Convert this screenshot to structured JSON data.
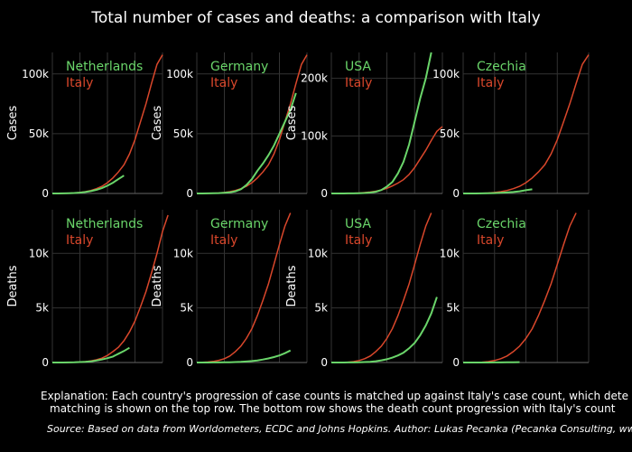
{
  "title": "Total number of cases and deaths: a comparison with Italy",
  "explanation": [
    "Explanation: Each country's progression of case counts is matched up against Italy's case count, which dete",
    "matching is shown on the top row. The bottom row shows the death count progression with Italy's count"
  ],
  "source": "Source: Based on data from Worldometers, ECDC and Johns Hopkins. Author: Lukas Pecanka (Pecanka Consulting, www.pecanka.net)",
  "colors": {
    "italy": "#d9472b",
    "country": "#6ad56a",
    "grid": "#333333",
    "zero": "#666666"
  },
  "chart_data": [
    {
      "type": "line",
      "row": "cases",
      "ylabel": "Cases",
      "yticks": [
        0,
        50000,
        100000
      ],
      "ytick_labels": [
        "0",
        "50k",
        "100k"
      ],
      "ylim": [
        0,
        118000
      ],
      "series": [
        {
          "name": "Netherlands",
          "values": [
            0,
            0,
            100,
            200,
            400,
            700,
            1200,
            2000,
            3000,
            4500,
            6500,
            9000,
            12000,
            15000
          ]
        },
        {
          "name": "Italy",
          "values": [
            0,
            0,
            100,
            200,
            400,
            800,
            1500,
            2500,
            4000,
            6000,
            9000,
            13000,
            18000,
            24000,
            33000,
            45000,
            60000,
            75000,
            92000,
            108000,
            116000
          ]
        }
      ]
    },
    {
      "type": "line",
      "row": "cases",
      "ylabel": "Cases",
      "yticks": [
        0,
        50000,
        100000
      ],
      "ytick_labels": [
        "0",
        "50k",
        "100k"
      ],
      "ylim": [
        0,
        118000
      ],
      "series": [
        {
          "name": "Germany",
          "values": [
            0,
            0,
            100,
            200,
            300,
            500,
            900,
            1800,
            3500,
            7000,
            12000,
            19000,
            25000,
            32000,
            40000,
            50000,
            60000,
            70000,
            84000
          ]
        },
        {
          "name": "Italy",
          "values": [
            0,
            0,
            100,
            200,
            400,
            800,
            1500,
            2500,
            4000,
            6000,
            9000,
            13000,
            18000,
            24000,
            33000,
            45000,
            60000,
            75000,
            92000,
            108000,
            116000
          ]
        }
      ]
    },
    {
      "type": "line",
      "row": "cases",
      "ylabel": "Cases",
      "yticks": [
        0,
        100000,
        200000
      ],
      "ytick_labels": [
        "0",
        "100k",
        "200k"
      ],
      "ylim": [
        0,
        245000
      ],
      "series": [
        {
          "name": "USA",
          "values": [
            0,
            0,
            0,
            100,
            200,
            400,
            800,
            1500,
            3000,
            6000,
            12000,
            20000,
            35000,
            55000,
            85000,
            125000,
            165000,
            200000,
            245000
          ]
        },
        {
          "name": "Italy",
          "values": [
            0,
            0,
            100,
            200,
            400,
            800,
            1500,
            2500,
            4000,
            6000,
            9000,
            13000,
            18000,
            24000,
            33000,
            45000,
            60000,
            75000,
            92000,
            108000,
            116000
          ]
        }
      ]
    },
    {
      "type": "line",
      "row": "cases",
      "ylabel": "",
      "yticks": [
        0,
        50000,
        100000
      ],
      "ytick_labels": [
        "0",
        "50k",
        "100k"
      ],
      "ylim": [
        0,
        118000
      ],
      "series": [
        {
          "name": "Czechia",
          "values": [
            0,
            0,
            0,
            100,
            150,
            300,
            500,
            800,
            1200,
            1800,
            2700,
            3500
          ]
        },
        {
          "name": "Italy",
          "values": [
            0,
            0,
            100,
            200,
            400,
            800,
            1500,
            2500,
            4000,
            6000,
            9000,
            13000,
            18000,
            24000,
            33000,
            45000,
            60000,
            75000,
            92000,
            108000,
            116000
          ]
        }
      ]
    },
    {
      "type": "line",
      "row": "deaths",
      "ylabel": "Deaths",
      "yticks": [
        0,
        5000,
        10000
      ],
      "ytick_labels": [
        "0",
        "5k",
        "10k"
      ],
      "ylim": [
        0,
        14000
      ],
      "series": [
        {
          "name": "Netherlands",
          "values": [
            0,
            0,
            0,
            10,
            20,
            40,
            60,
            100,
            180,
            270,
            400,
            550,
            800,
            1050,
            1350
          ]
        },
        {
          "name": "Italy",
          "values": [
            0,
            0,
            0,
            10,
            20,
            40,
            80,
            150,
            250,
            400,
            650,
            1000,
            1400,
            2000,
            2800,
            3800,
            5100,
            6500,
            8200,
            10000,
            12000,
            13500
          ]
        }
      ]
    },
    {
      "type": "line",
      "row": "deaths",
      "ylabel": "Deaths",
      "yticks": [
        0,
        5000,
        10000
      ],
      "ytick_labels": [
        "0",
        "5k",
        "10k"
      ],
      "ylim": [
        0,
        14000
      ],
      "series": [
        {
          "name": "Germany",
          "values": [
            0,
            0,
            0,
            5,
            10,
            15,
            25,
            40,
            60,
            90,
            130,
            190,
            270,
            370,
            500,
            650,
            850,
            1100
          ]
        },
        {
          "name": "Italy",
          "values": [
            0,
            20,
            50,
            100,
            200,
            350,
            600,
            1000,
            1500,
            2200,
            3100,
            4300,
            5700,
            7200,
            9000,
            10800,
            12500,
            13700
          ]
        }
      ]
    },
    {
      "type": "line",
      "row": "deaths",
      "ylabel": "Deaths",
      "yticks": [
        0,
        5000,
        10000
      ],
      "ytick_labels": [
        "0",
        "5k",
        "10k"
      ],
      "ylim": [
        0,
        14000
      ],
      "series": [
        {
          "name": "USA",
          "values": [
            0,
            0,
            0,
            5,
            10,
            20,
            40,
            70,
            120,
            200,
            300,
            450,
            650,
            900,
            1300,
            1800,
            2500,
            3400,
            4500,
            6000
          ]
        },
        {
          "name": "Italy",
          "values": [
            0,
            0,
            10,
            30,
            80,
            180,
            350,
            600,
            1000,
            1500,
            2200,
            3100,
            4300,
            5700,
            7200,
            9000,
            10800,
            12500,
            13700
          ]
        }
      ]
    },
    {
      "type": "line",
      "row": "deaths",
      "ylabel": "",
      "yticks": [
        0,
        5000,
        10000
      ],
      "ytick_labels": [
        "0",
        "5k",
        "10k"
      ],
      "ylim": [
        0,
        14000
      ],
      "series": [
        {
          "name": "Czechia",
          "values": [
            0,
            0,
            0,
            0,
            0,
            5,
            10,
            15,
            25,
            35
          ]
        },
        {
          "name": "Italy",
          "values": [
            0,
            0,
            10,
            30,
            80,
            180,
            350,
            600,
            1000,
            1500,
            2200,
            3100,
            4300,
            5700,
            7200,
            9000,
            10800,
            12500,
            13700
          ]
        }
      ]
    }
  ]
}
